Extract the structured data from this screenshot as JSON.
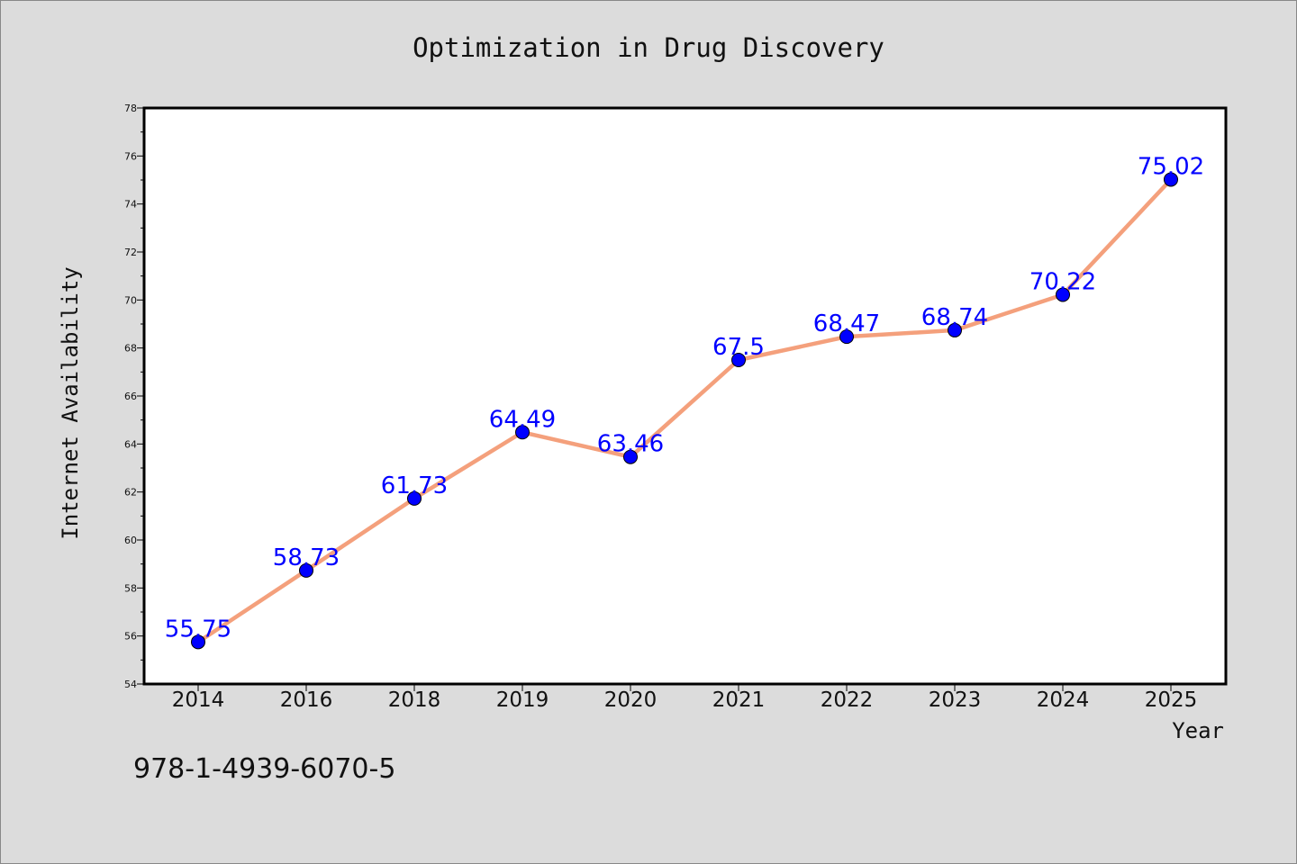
{
  "chart_data": {
    "type": "line",
    "title": "Optimization in Drug Discovery",
    "xlabel": "Year",
    "ylabel": "Internet Availability",
    "categories": [
      "2014",
      "2016",
      "2018",
      "2019",
      "2020",
      "2021",
      "2022",
      "2023",
      "2024",
      "2025"
    ],
    "series": [
      {
        "values": [
          55.75,
          58.73,
          61.73,
          64.49,
          63.46,
          67.5,
          68.47,
          68.74,
          70.22,
          75.02
        ],
        "labels": [
          "55.75",
          "58.73",
          "61.73",
          "64.49",
          "63.46",
          "67.5",
          "68.47",
          "68.74",
          "70.22",
          "75.02"
        ],
        "line_color": "#f4a07c",
        "marker_color": "#0000ff"
      }
    ],
    "ylim": [
      54,
      78
    ],
    "yticks": [
      "54",
      "56",
      "58",
      "60",
      "62",
      "64",
      "66",
      "68",
      "70",
      "72",
      "74",
      "76",
      "78"
    ],
    "grid": false,
    "legend": "none"
  },
  "annotation": "978-1-4939-6070-5",
  "colors": {
    "background": "#dcdcdc",
    "plot_background": "#ffffff",
    "line": "#f4a07c",
    "marker": "#0000ff",
    "data_label": "#0000ff"
  }
}
